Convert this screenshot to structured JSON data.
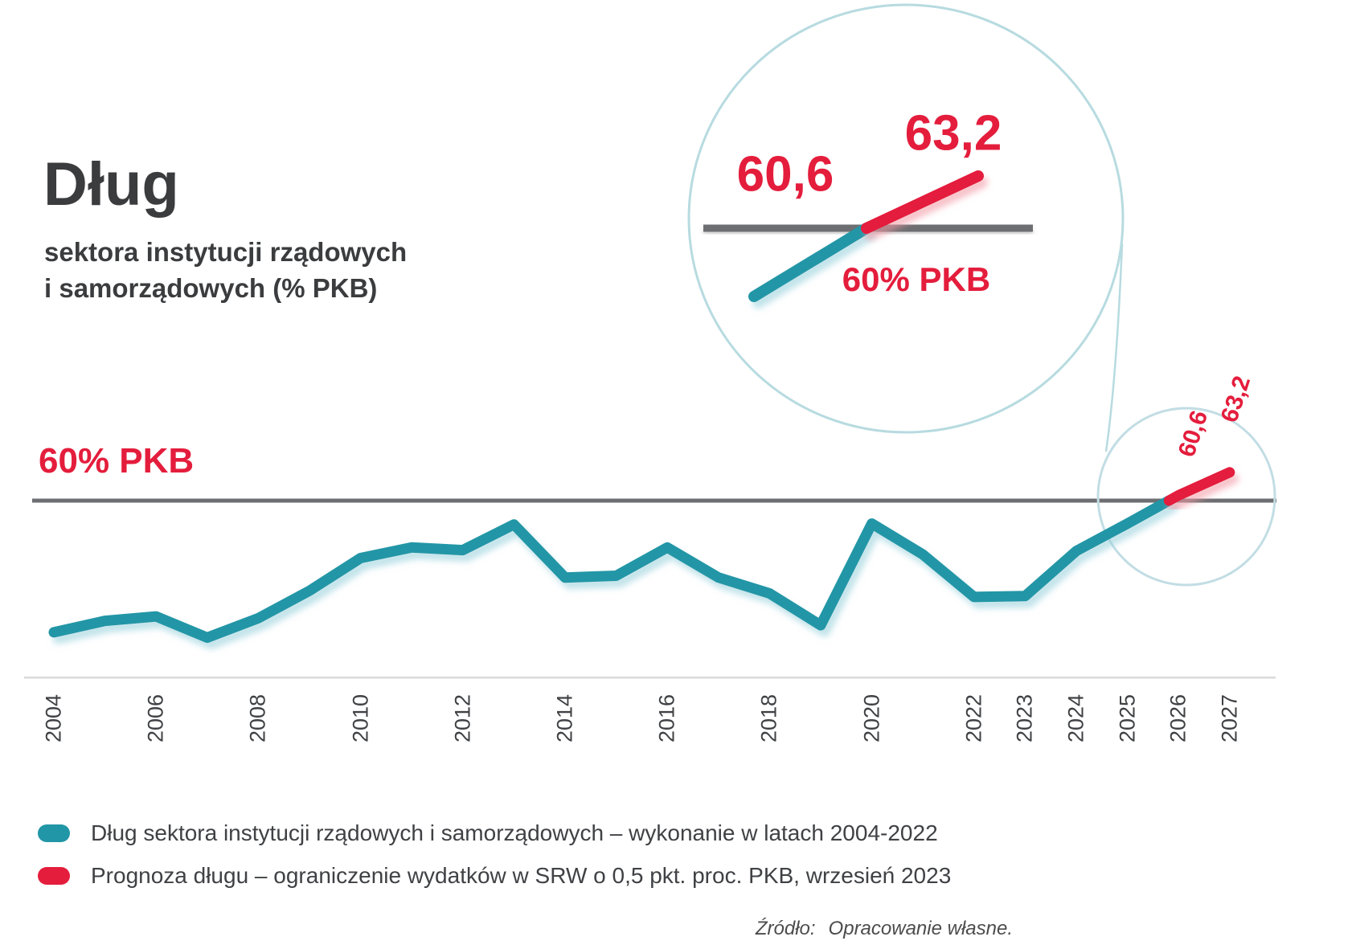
{
  "title": {
    "main": "Dług",
    "subtitle_line1": "sektora instytucji rządowych",
    "subtitle_line2": "i samorządowych (% PKB)"
  },
  "reference_label": "60% PKB",
  "inset": {
    "start_value": "60,6",
    "end_value": "63,2",
    "reference_label": "60% PKB"
  },
  "callout": {
    "value_2026": "60,6",
    "value_2027": "63,2"
  },
  "legend": {
    "items": [
      {
        "name": "actual",
        "label": "Dług sektora instytucji rządowych i samorządowych – wykonanie w latach 2004-2022",
        "color": "#2196a6"
      },
      {
        "name": "forecast",
        "label": "Prognoza długu – ograniczenie wydatków w SRW o 0,5 pkt. proc. PKB, wrzesień 2023",
        "color": "#e41d3c"
      }
    ]
  },
  "source": {
    "prefix": "Źródło:",
    "text": "Opracowanie własne."
  },
  "colors": {
    "accent_teal": "#2196a6",
    "accent_red": "#e41d3c",
    "reference_gray": "#6d6e71",
    "circle_stroke": "#b7dbe0",
    "small_circle_stroke": "#c2dde4",
    "text_dark": "#3b3c3e",
    "axis_text": "#3f4144",
    "light_rule": "#dadada"
  },
  "chart_data": {
    "type": "line",
    "title": "Dług sektora instytucji rządowych i samorządowych (% PKB)",
    "years": [
      2004,
      2005,
      2006,
      2007,
      2008,
      2009,
      2010,
      2011,
      2012,
      2013,
      2014,
      2015,
      2016,
      2017,
      2018,
      2019,
      2020,
      2021,
      2022,
      2023,
      2024,
      2025,
      2026,
      2027
    ],
    "values": [
      45.1,
      46.4,
      46.9,
      44.5,
      46.7,
      49.8,
      53.5,
      54.7,
      54.4,
      57.3,
      51.3,
      51.5,
      54.7,
      51.3,
      49.5,
      45.9,
      57.4,
      53.9,
      49.1,
      49.2,
      54.3,
      57.4,
      60.6,
      63.2
    ],
    "x_axis_labels": [
      "2004",
      "2006",
      "2008",
      "2010",
      "2012",
      "2014",
      "2016",
      "2018",
      "2020",
      "2022",
      "2023",
      "2024",
      "2025",
      "2026",
      "2027"
    ],
    "series": [
      {
        "name": "actual",
        "legend_label": "Dług sektora instytucji rządowych i samorządowych – wykonanie w latach 2004-2022",
        "color": "#2196a6",
        "years_covered": "2004-2022"
      },
      {
        "name": "forecast",
        "legend_label": "Prognoza długu – ograniczenie wydatków w SRW o 0,5 pkt. proc. PKB, wrzesień 2023",
        "color": "#e41d3c",
        "labeled_points": {
          "2026": "60,6",
          "2027": "63,2"
        }
      }
    ],
    "reference_line": {
      "value": 60,
      "label": "60% PKB"
    },
    "ylim": [
      40,
      65
    ],
    "grid": false,
    "legend_position": "bottom"
  }
}
